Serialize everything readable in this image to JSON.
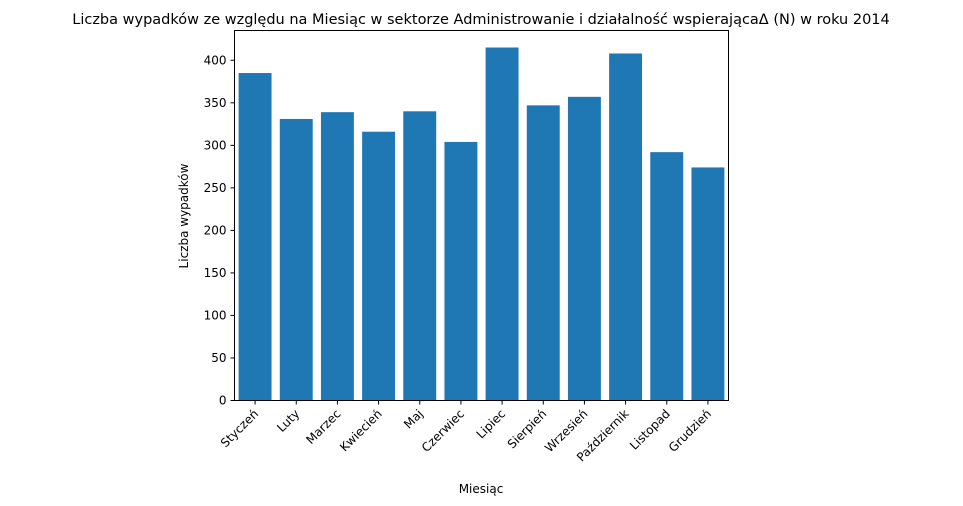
{
  "chart_data": {
    "type": "bar",
    "title": "Liczba wypadków ze względu na Miesiąc w sektorze Administrowanie i działalność wspierającaΔ (N) w roku 2014",
    "xlabel": "Miesiąc",
    "ylabel": "Liczba wypadków",
    "categories": [
      "Styczeń",
      "Luty",
      "Marzec",
      "Kwiecień",
      "Maj",
      "Czerwiec",
      "Lipiec",
      "Sierpień",
      "Wrzesień",
      "Październik",
      "Listopad",
      "Grudzień"
    ],
    "values": [
      385,
      331,
      339,
      316,
      340,
      304,
      415,
      347,
      357,
      408,
      292,
      274
    ],
    "ylim": [
      0,
      435
    ],
    "yticks": [
      0,
      50,
      100,
      150,
      200,
      250,
      300,
      350,
      400
    ],
    "bar_color": "#1f77b4",
    "grid": false,
    "legend": false
  }
}
